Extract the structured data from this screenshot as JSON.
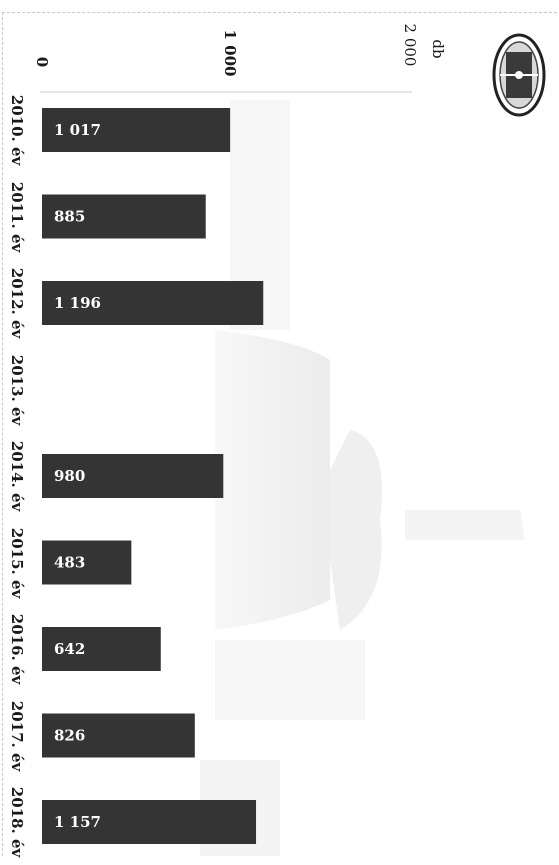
{
  "chart_data": {
    "type": "bar",
    "orientation": "vertical-bars-rotated-90",
    "unit": "db",
    "ylim": [
      0,
      2000
    ],
    "yticks": [
      {
        "value": 0,
        "label": "0"
      },
      {
        "value": 1000,
        "label": "1 000"
      },
      {
        "value": 2000,
        "label": "2 000"
      }
    ],
    "categories": [
      "2010. év",
      "2011. év",
      "2012. év",
      "2013. év",
      "2014. év",
      "2015. év",
      "2016. év",
      "2017. év",
      "2018. év"
    ],
    "values": [
      1017,
      885,
      1196,
      null,
      980,
      483,
      642,
      826,
      1157
    ],
    "value_labels": [
      "1 017",
      "885",
      "1 196",
      "",
      "980",
      "483",
      "642",
      "826",
      "1 157"
    ],
    "bar_color": "#343434",
    "grid": false
  }
}
